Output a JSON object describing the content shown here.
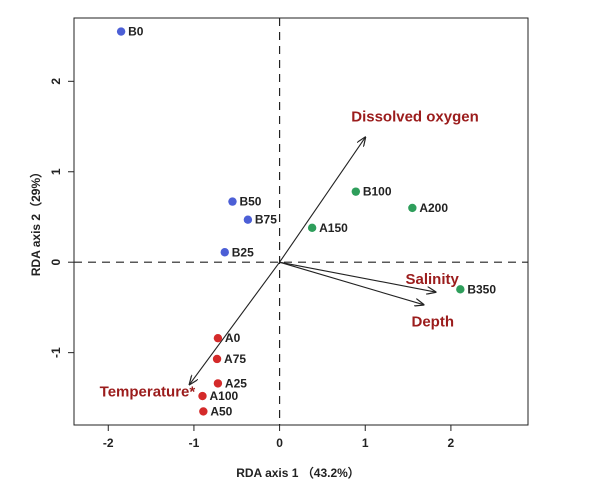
{
  "chart_data": {
    "type": "scatter",
    "title": "",
    "xlabel": "RDA axis 1 （43.2%）",
    "ylabel": "RDA axis 2（29%）",
    "xlim": [
      -2.4,
      2.9
    ],
    "ylim": [
      -1.8,
      2.7
    ],
    "xticks": [
      -2,
      -1,
      0,
      1,
      2
    ],
    "yticks": [
      -1,
      0,
      1,
      2
    ],
    "reference_lines": {
      "x": 0,
      "y": 0,
      "style": "dashed"
    },
    "grid": false,
    "legend": "none",
    "groups": [
      {
        "color": "#4c5fd6",
        "points": [
          {
            "label": "B0",
            "x": -1.85,
            "y": 2.55
          },
          {
            "label": "B50",
            "x": -0.55,
            "y": 0.67
          },
          {
            "label": "B75",
            "x": -0.37,
            "y": 0.47
          },
          {
            "label": "B25",
            "x": -0.64,
            "y": 0.11
          }
        ]
      },
      {
        "color": "#2e9e5b",
        "points": [
          {
            "label": "B100",
            "x": 0.89,
            "y": 0.78
          },
          {
            "label": "A200",
            "x": 1.55,
            "y": 0.6
          },
          {
            "label": "A150",
            "x": 0.38,
            "y": 0.38
          },
          {
            "label": "B350",
            "x": 2.11,
            "y": -0.3
          }
        ]
      },
      {
        "color": "#d42a2a",
        "points": [
          {
            "label": "A0",
            "x": -0.72,
            "y": -0.84
          },
          {
            "label": "A75",
            "x": -0.73,
            "y": -1.07
          },
          {
            "label": "A25",
            "x": -0.72,
            "y": -1.34
          },
          {
            "label": "A100",
            "x": -0.9,
            "y": -1.48
          },
          {
            "label": "A50",
            "x": -0.89,
            "y": -1.65
          }
        ]
      }
    ],
    "vectors": [
      {
        "label": "Dissolved oxygen",
        "x": 1.0,
        "y": 1.38
      },
      {
        "label": "Temperature*",
        "x": -1.05,
        "y": -1.35
      },
      {
        "label": "Salinity",
        "x": 1.82,
        "y": -0.33
      },
      {
        "label": "Depth",
        "x": 1.68,
        "y": -0.47
      }
    ],
    "vector_label_color": "#9b1c1c"
  }
}
